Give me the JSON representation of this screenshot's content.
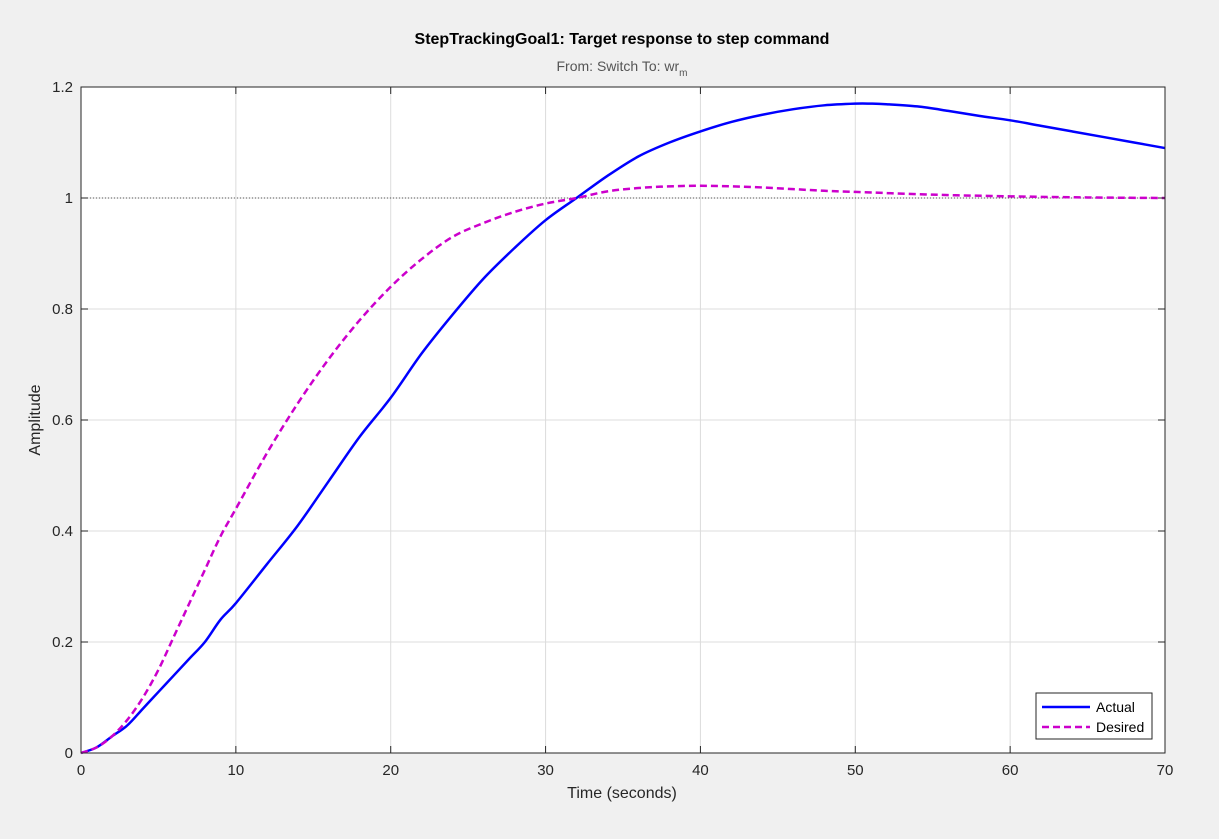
{
  "chart_data": {
    "type": "line",
    "title": "StepTrackingGoal1: Target response to step command",
    "subtitle": {
      "prefix": "From: Switch  To: wr",
      "subscript": "m"
    },
    "xlabel": "Time (seconds)",
    "ylabel": "Amplitude",
    "xlim": [
      0,
      70
    ],
    "ylim": [
      0,
      1.2
    ],
    "xticks": [
      0,
      10,
      20,
      30,
      40,
      50,
      60,
      70
    ],
    "xtick_labels": [
      "0",
      "10",
      "20",
      "30",
      "40",
      "50",
      "60",
      "70"
    ],
    "yticks": [
      0,
      0.2,
      0.4,
      0.6,
      0.8,
      1,
      1.2
    ],
    "ytick_labels": [
      "0",
      "0.2",
      "0.4",
      "0.6",
      "0.8",
      "1",
      "1.2"
    ],
    "grid": true,
    "reference_line": {
      "y": 1,
      "style": "dotted",
      "color": "#555555"
    },
    "legend": {
      "location": "bottom-right",
      "entries": [
        "Actual",
        "Desired"
      ]
    },
    "series": [
      {
        "name": "Actual",
        "color": "#0000ff",
        "style": "solid",
        "x": [
          0,
          1,
          2,
          3,
          4,
          5,
          6,
          7,
          8,
          9,
          10,
          12,
          14,
          16,
          18,
          20,
          22,
          24,
          26,
          28,
          30,
          32,
          34,
          36,
          38,
          40,
          42,
          44,
          46,
          48,
          50,
          51,
          52,
          54,
          56,
          58,
          60,
          62,
          64,
          66,
          68,
          70
        ],
        "y": [
          0,
          0.01,
          0.03,
          0.05,
          0.08,
          0.11,
          0.14,
          0.17,
          0.2,
          0.24,
          0.27,
          0.34,
          0.41,
          0.49,
          0.57,
          0.64,
          0.72,
          0.79,
          0.855,
          0.91,
          0.96,
          1.0,
          1.04,
          1.075,
          1.1,
          1.12,
          1.137,
          1.15,
          1.16,
          1.167,
          1.17,
          1.17,
          1.169,
          1.165,
          1.157,
          1.148,
          1.14,
          1.13,
          1.12,
          1.11,
          1.1,
          1.09
        ]
      },
      {
        "name": "Desired",
        "color": "#cc00cc",
        "style": "dashed",
        "x": [
          0,
          1,
          2,
          3,
          4,
          5,
          6,
          7,
          8,
          9,
          10,
          12,
          14,
          16,
          18,
          20,
          22,
          24,
          26,
          28,
          30,
          32,
          34,
          36,
          38,
          40,
          42,
          44,
          46,
          48,
          50,
          55,
          60,
          65,
          70
        ],
        "y": [
          0,
          0.01,
          0.03,
          0.06,
          0.1,
          0.15,
          0.21,
          0.27,
          0.33,
          0.39,
          0.44,
          0.54,
          0.63,
          0.71,
          0.78,
          0.84,
          0.89,
          0.93,
          0.955,
          0.975,
          0.99,
          1.0,
          1.012,
          1.018,
          1.021,
          1.022,
          1.021,
          1.019,
          1.016,
          1.013,
          1.011,
          1.006,
          1.003,
          1.001,
          1.0
        ]
      }
    ]
  }
}
